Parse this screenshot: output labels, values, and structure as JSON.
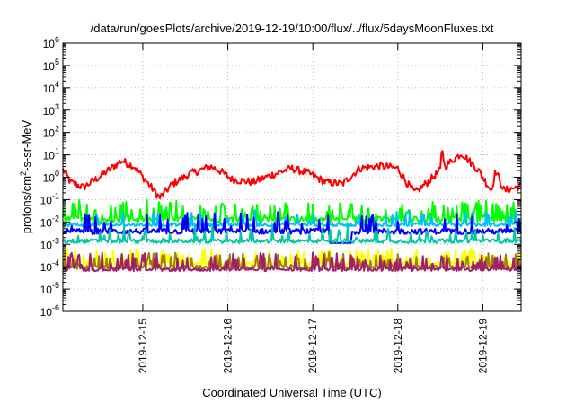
{
  "chart_data": {
    "type": "line",
    "title": "/data/run/goesPlots/archive/2019-12-19/10:00/flux/../flux/5daysMoonFluxes.txt",
    "xlabel": "Coordinated Universal Time (UTC)",
    "ylabel": {
      "prefix": "protons/cm",
      "sup": "2",
      "suffix": "-s-sr-MeV"
    },
    "yscale": "log",
    "ylim": [
      1e-06,
      1000000.0
    ],
    "y_ticks": [
      {
        "exp": "-6"
      },
      {
        "exp": "-5"
      },
      {
        "exp": "-4"
      },
      {
        "exp": "-3"
      },
      {
        "exp": "-2"
      },
      {
        "exp": "-1"
      },
      {
        "exp": "0"
      },
      {
        "exp": "1"
      },
      {
        "exp": "2"
      },
      {
        "exp": "3"
      },
      {
        "exp": "4"
      },
      {
        "exp": "5"
      },
      {
        "exp": "6"
      }
    ],
    "xlim": [
      14.06,
      19.45
    ],
    "x_ticks": [
      {
        "label": "2019-12-15",
        "value": 15
      },
      {
        "label": "2019-12-16",
        "value": 16
      },
      {
        "label": "2019-12-17",
        "value": 17
      },
      {
        "label": "2019-12-18",
        "value": 18
      },
      {
        "label": "2019-12-19",
        "value": 19
      }
    ],
    "grid": true,
    "series": [
      {
        "color": "#ff0000",
        "base": 1.2,
        "noise": 0.35,
        "spike_prob": 0.0,
        "spike": 0,
        "anchors": [
          [
            14.06,
            2.2
          ],
          [
            14.15,
            0.6
          ],
          [
            14.3,
            0.35
          ],
          [
            14.5,
            1.1
          ],
          [
            14.75,
            5.5
          ],
          [
            14.9,
            3.0
          ],
          [
            15.05,
            0.6
          ],
          [
            15.2,
            0.12
          ],
          [
            15.35,
            0.5
          ],
          [
            15.55,
            1.4
          ],
          [
            15.8,
            3.0
          ],
          [
            15.9,
            2.0
          ],
          [
            16.05,
            0.8
          ],
          [
            16.3,
            0.6
          ],
          [
            16.5,
            1.2
          ],
          [
            16.75,
            2.5
          ],
          [
            16.95,
            1.5
          ],
          [
            17.15,
            0.6
          ],
          [
            17.35,
            0.5
          ],
          [
            17.55,
            2.5
          ],
          [
            17.8,
            3.2
          ],
          [
            18.0,
            2.5
          ],
          [
            18.1,
            0.6
          ],
          [
            18.2,
            0.2
          ],
          [
            18.35,
            0.6
          ],
          [
            18.5,
            2.0
          ],
          [
            18.52,
            25
          ],
          [
            18.55,
            3.0
          ],
          [
            18.75,
            12
          ],
          [
            18.95,
            2.0
          ],
          [
            19.05,
            0.5
          ],
          [
            19.1,
            0.25
          ],
          [
            19.15,
            2.0
          ],
          [
            19.25,
            0.25
          ],
          [
            19.45,
            0.4
          ]
        ]
      },
      {
        "color": "#00ff00",
        "base": 0.013,
        "noise": 0.25,
        "spike_prob": 0.25,
        "spike": 5,
        "anchors": []
      },
      {
        "color": "#00bfff",
        "base": 0.0075,
        "noise": 0.15,
        "spike_prob": 0.12,
        "spike": 3,
        "anchors": []
      },
      {
        "color": "#0000ff",
        "base": 0.0038,
        "noise": 0.25,
        "spike_prob": 0.12,
        "spike": 5,
        "anchors": []
      },
      {
        "color": "#00c8a0",
        "base": 0.0014,
        "noise": 0.18,
        "spike_prob": 0.15,
        "spike": 3,
        "anchors": []
      },
      {
        "color": "#ffff00",
        "base": 0.00014,
        "noise": 0.15,
        "spike_prob": 0.22,
        "spike": 3,
        "anchors": []
      },
      {
        "color": "#a08000",
        "base": 9.5e-05,
        "noise": 0.15,
        "spike_prob": 0.22,
        "spike": 3,
        "anchors": []
      },
      {
        "color": "#a0206a",
        "base": 7.5e-05,
        "noise": 0.15,
        "spike_prob": 0.22,
        "spike": 4,
        "anchors": []
      }
    ]
  }
}
